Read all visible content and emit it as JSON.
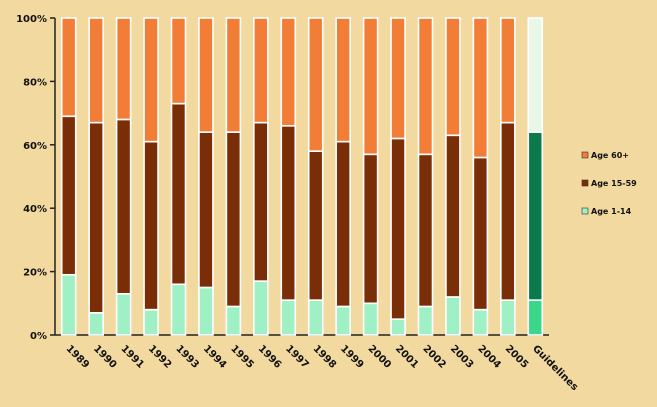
{
  "chart_data": {
    "type": "bar",
    "stacked": true,
    "percent": true,
    "categories": [
      "1989",
      "1990",
      "1991",
      "1992",
      "1993",
      "1994",
      "1995",
      "1996",
      "1997",
      "1998",
      "1999",
      "2000",
      "2001",
      "2002",
      "2003",
      "2004",
      "2005",
      "Guidelines"
    ],
    "series": [
      {
        "name": "Age 1-14",
        "values": [
          19,
          7,
          13,
          8,
          16,
          15,
          9,
          17,
          11,
          11,
          9,
          10,
          5,
          9,
          12,
          8,
          11,
          11
        ]
      },
      {
        "name": "Age 15-59",
        "values": [
          50,
          60,
          55,
          53,
          57,
          49,
          55,
          50,
          55,
          47,
          52,
          47,
          57,
          48,
          51,
          48,
          56,
          53
        ]
      },
      {
        "name": "Age 60+",
        "values": [
          31,
          33,
          32,
          39,
          27,
          36,
          36,
          33,
          34,
          42,
          39,
          43,
          38,
          43,
          37,
          44,
          33,
          36
        ]
      }
    ],
    "highlight_category": "Guidelines",
    "colors": {
      "Age 1-14": "#9ff0c4",
      "Age 15-59": "#7a2e08",
      "Age 60+": "#f27d36",
      "guideline_1": "#3ad68a",
      "guideline_2": "#0a7a4a",
      "guideline_3": "#e8f8e8"
    },
    "ylim": [
      0,
      100
    ],
    "yticks": [
      "0%",
      "20%",
      "40%",
      "60%",
      "80%",
      "100%"
    ],
    "legend_position": "right",
    "legend": [
      "Age 60+",
      "Age 15-59",
      "Age 1-14"
    ],
    "grid": false
  }
}
